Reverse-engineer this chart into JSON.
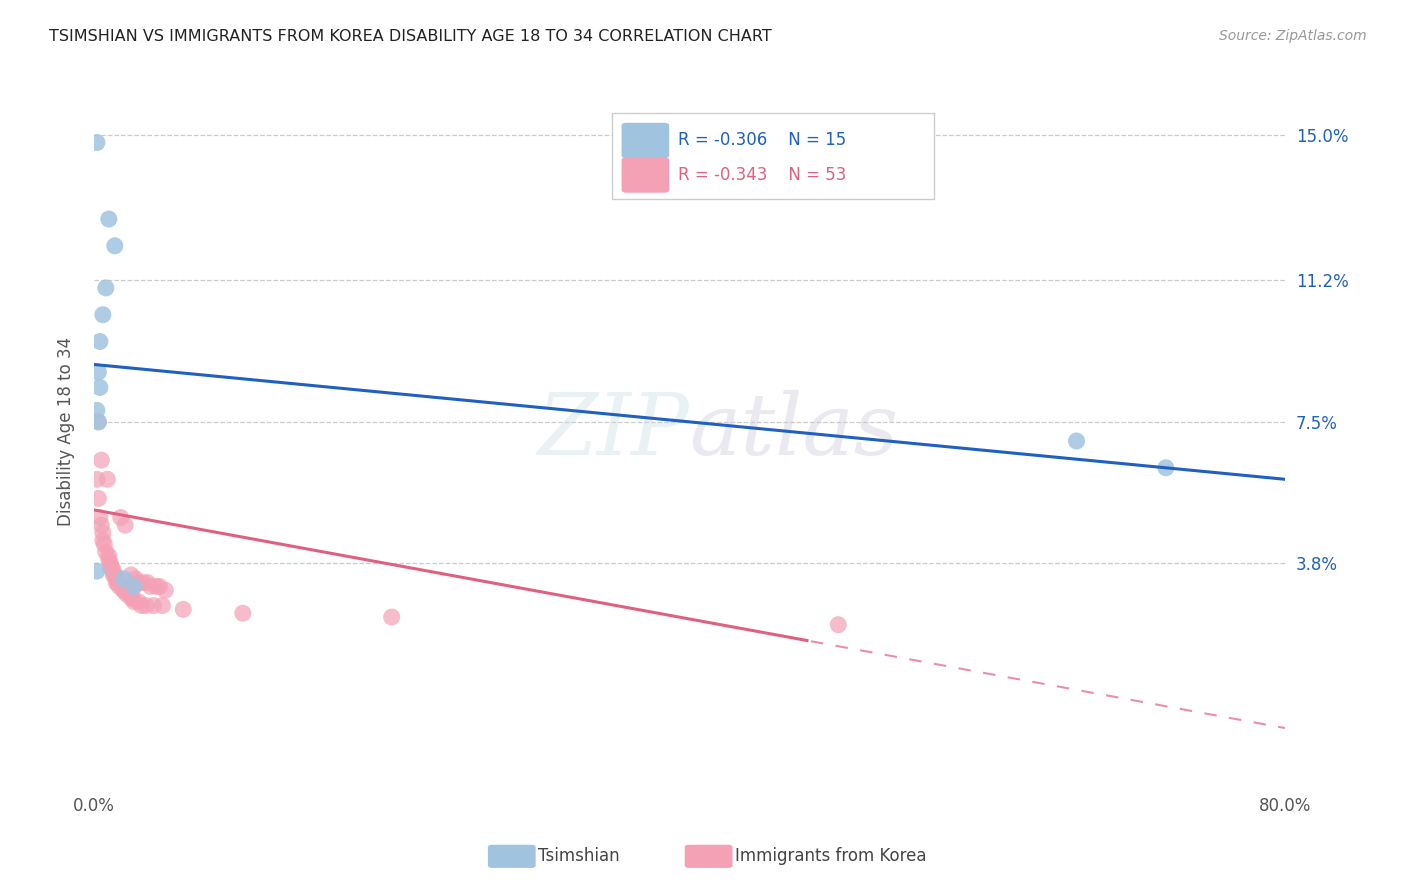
{
  "title": "TSIMSHIAN VS IMMIGRANTS FROM KOREA DISABILITY AGE 18 TO 34 CORRELATION CHART",
  "source": "Source: ZipAtlas.com",
  "ylabel": "Disability Age 18 to 34",
  "ytick_vals": [
    0.038,
    0.075,
    0.112,
    0.15
  ],
  "ytick_labels": [
    "3.8%",
    "7.5%",
    "11.2%",
    "15.0%"
  ],
  "xmin": 0.0,
  "xmax": 0.8,
  "ymin": -0.02,
  "ymax": 0.165,
  "blue_color": "#a0c4e0",
  "pink_color": "#f4a0b5",
  "blue_line_color": "#2060c0",
  "pink_line_color": "#e06080",
  "R_tsimshian": -0.306,
  "N_tsimshian": 15,
  "R_korea": -0.343,
  "N_korea": 53,
  "blue_line_x0": 0.0,
  "blue_line_y0": 0.09,
  "blue_line_x1": 0.8,
  "blue_line_y1": 0.06,
  "pink_line_x0": 0.0,
  "pink_line_y0": 0.052,
  "pink_line_x1": 0.8,
  "pink_line_y1": -0.005,
  "pink_solid_cutoff": 0.48,
  "tsimshian_pts": [
    [
      0.002,
      0.148
    ],
    [
      0.01,
      0.128
    ],
    [
      0.014,
      0.121
    ],
    [
      0.008,
      0.11
    ],
    [
      0.006,
      0.103
    ],
    [
      0.004,
      0.096
    ],
    [
      0.003,
      0.088
    ],
    [
      0.004,
      0.084
    ],
    [
      0.002,
      0.078
    ],
    [
      0.003,
      0.075
    ],
    [
      0.002,
      0.036
    ],
    [
      0.02,
      0.034
    ],
    [
      0.027,
      0.032
    ],
    [
      0.66,
      0.07
    ],
    [
      0.72,
      0.063
    ]
  ],
  "korea_pts": [
    [
      0.003,
      0.075
    ],
    [
      0.005,
      0.065
    ],
    [
      0.002,
      0.06
    ],
    [
      0.003,
      0.055
    ],
    [
      0.004,
      0.05
    ],
    [
      0.005,
      0.048
    ],
    [
      0.006,
      0.046
    ],
    [
      0.006,
      0.044
    ],
    [
      0.007,
      0.043
    ],
    [
      0.008,
      0.041
    ],
    [
      0.009,
      0.06
    ],
    [
      0.01,
      0.04
    ],
    [
      0.01,
      0.039
    ],
    [
      0.011,
      0.038
    ],
    [
      0.011,
      0.037
    ],
    [
      0.012,
      0.037
    ],
    [
      0.013,
      0.036
    ],
    [
      0.013,
      0.035
    ],
    [
      0.014,
      0.035
    ],
    [
      0.015,
      0.034
    ],
    [
      0.015,
      0.033
    ],
    [
      0.016,
      0.033
    ],
    [
      0.017,
      0.033
    ],
    [
      0.017,
      0.032
    ],
    [
      0.018,
      0.05
    ],
    [
      0.019,
      0.032
    ],
    [
      0.02,
      0.031
    ],
    [
      0.02,
      0.031
    ],
    [
      0.021,
      0.048
    ],
    [
      0.022,
      0.031
    ],
    [
      0.022,
      0.03
    ],
    [
      0.024,
      0.03
    ],
    [
      0.025,
      0.029
    ],
    [
      0.025,
      0.035
    ],
    [
      0.026,
      0.029
    ],
    [
      0.027,
      0.028
    ],
    [
      0.028,
      0.034
    ],
    [
      0.03,
      0.028
    ],
    [
      0.03,
      0.033
    ],
    [
      0.032,
      0.027
    ],
    [
      0.033,
      0.033
    ],
    [
      0.035,
      0.027
    ],
    [
      0.036,
      0.033
    ],
    [
      0.038,
      0.032
    ],
    [
      0.04,
      0.027
    ],
    [
      0.042,
      0.032
    ],
    [
      0.044,
      0.032
    ],
    [
      0.046,
      0.027
    ],
    [
      0.048,
      0.031
    ],
    [
      0.06,
      0.026
    ],
    [
      0.1,
      0.025
    ],
    [
      0.5,
      0.022
    ],
    [
      0.2,
      0.024
    ]
  ]
}
